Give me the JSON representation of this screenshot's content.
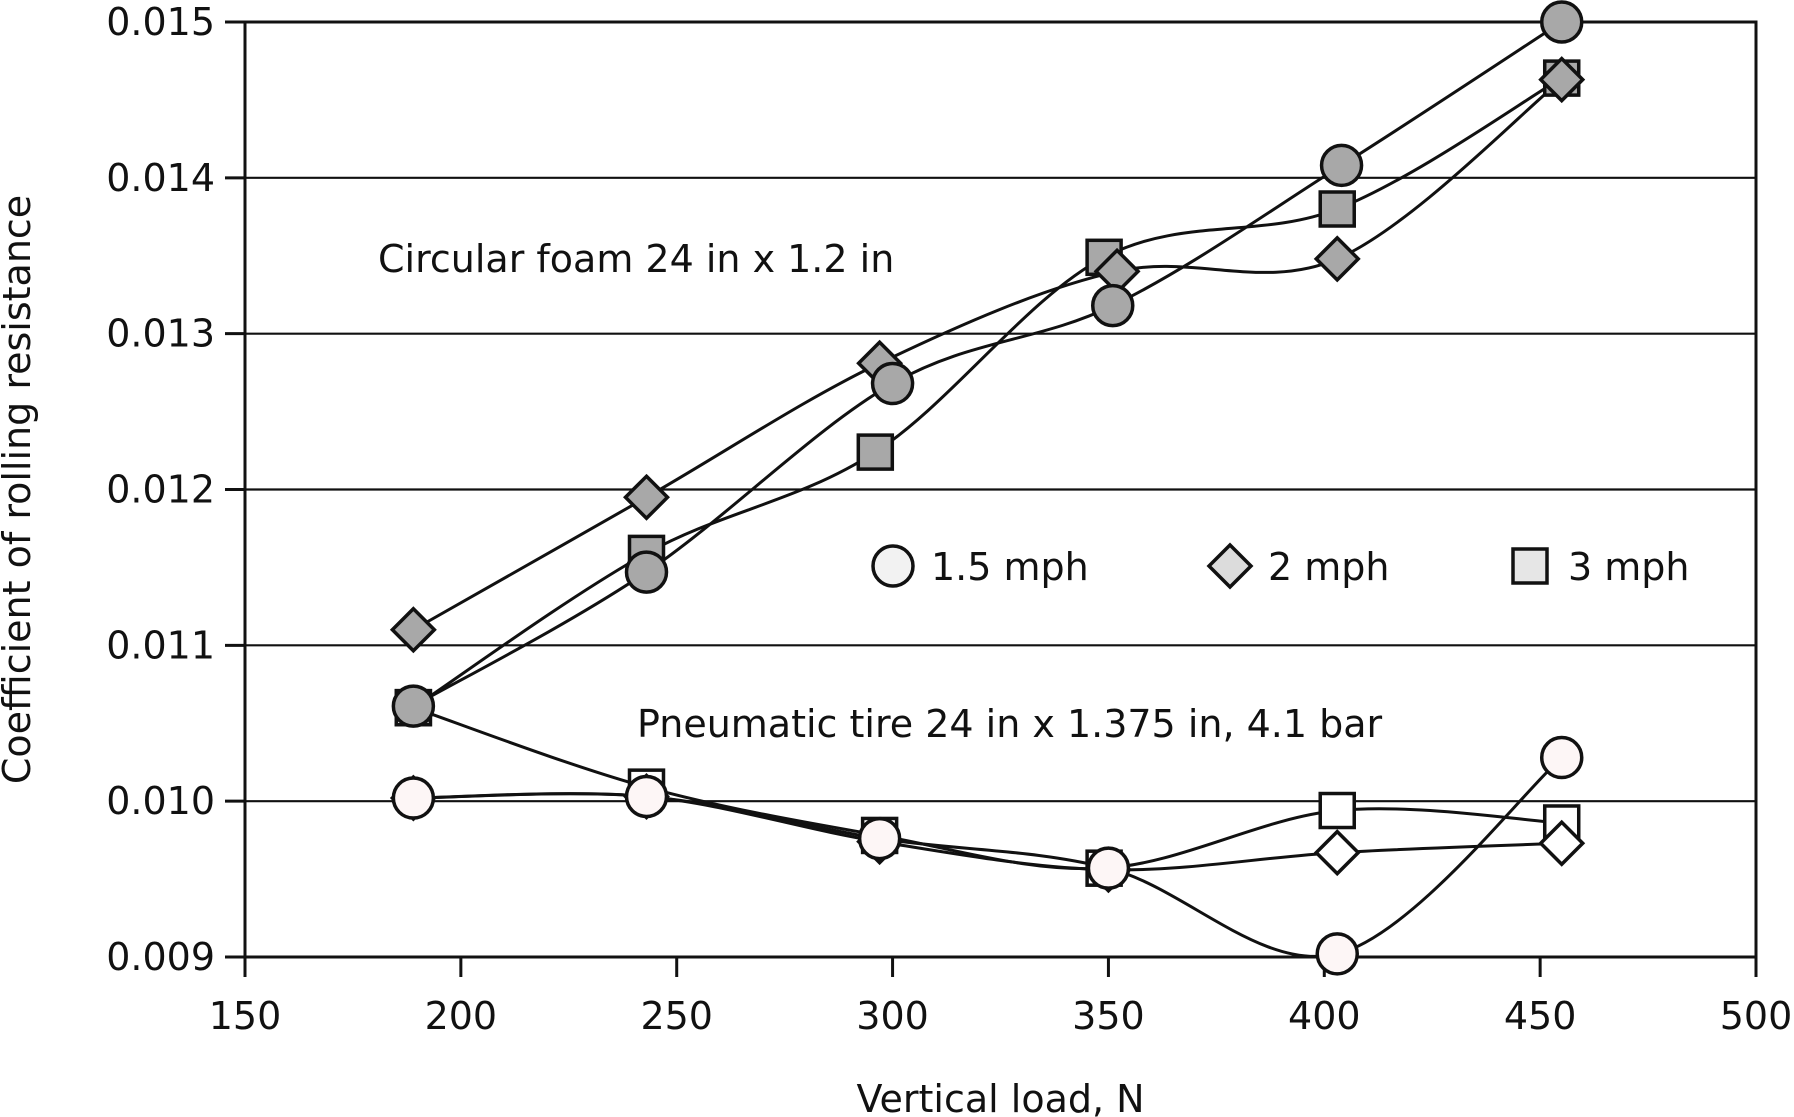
{
  "chart_data": {
    "type": "line",
    "title": "",
    "xlabel": "Vertical load, N",
    "ylabel": "Coefficient of rolling resistance",
    "xlim": [
      150,
      500
    ],
    "ylim": [
      0.009,
      0.015
    ],
    "xticks": [
      150,
      200,
      250,
      300,
      350,
      400,
      450,
      500
    ],
    "yticks": [
      0.009,
      0.01,
      0.011,
      0.012,
      0.013,
      0.014,
      0.015
    ],
    "xtick_labels": [
      "150",
      "200",
      "250",
      "300",
      "350",
      "400",
      "450",
      "500"
    ],
    "ytick_labels": [
      "0.009",
      "0.010",
      "0.011",
      "0.012",
      "0.013",
      "0.014",
      "0.015"
    ],
    "grid": "horizontal",
    "legend_position": "center-right",
    "legend": [
      {
        "label": "1.5 mph",
        "marker": "circle"
      },
      {
        "label": "2 mph",
        "marker": "diamond"
      },
      {
        "label": "3 mph",
        "marker": "square"
      }
    ],
    "annotations": [
      {
        "text": "Circular foam 24 in x 1.2 in"
      },
      {
        "text": "Pneumatic tire 24 in x 1.375 in, 4.1 bar"
      }
    ],
    "colors": {
      "foam_fill": "#a8a8a8",
      "tire_fill": "#ffffff",
      "tire_circle_fill": "#fdf6f6",
      "legend_circle_fill": "#f2f2f2",
      "legend_diamond_fill": "#dcdcdc",
      "legend_square_fill": "#e6e6e6",
      "line": "#111111"
    },
    "series": [
      {
        "group": "Circular foam 24 in x 1.2 in",
        "speed": "1.5 mph",
        "marker": "circle",
        "x": [
          189,
          243,
          300,
          351,
          404,
          455
        ],
        "y": [
          0.01061,
          0.01147,
          0.01268,
          0.01318,
          0.01408,
          0.015
        ]
      },
      {
        "group": "Circular foam 24 in x 1.2 in",
        "speed": "2 mph",
        "marker": "diamond",
        "x": [
          189,
          243,
          297,
          352,
          403,
          455
        ],
        "y": [
          0.0111,
          0.01195,
          0.01281,
          0.0134,
          0.01348,
          0.01463
        ]
      },
      {
        "group": "Circular foam 24 in x 1.2 in",
        "speed": "3 mph",
        "marker": "square",
        "x": [
          189,
          243,
          296,
          349,
          403,
          455
        ],
        "y": [
          0.0106,
          0.01159,
          0.01224,
          0.01349,
          0.0138,
          0.01464
        ]
      },
      {
        "group": "Pneumatic tire 24 in x 1.375 in, 4.1 bar",
        "speed": "1.5 mph",
        "marker": "circle",
        "x": [
          189,
          243,
          297,
          350,
          403,
          455
        ],
        "y": [
          0.01002,
          0.01003,
          0.00976,
          0.00957,
          0.00902,
          0.01028
        ]
      },
      {
        "group": "Pneumatic tire 24 in x 1.375 in, 4.1 bar",
        "speed": "2 mph",
        "marker": "diamond",
        "x": [
          189,
          243,
          297,
          350,
          403,
          455
        ],
        "y": [
          0.01002,
          0.01003,
          0.00974,
          0.00956,
          0.00967,
          0.00973
        ]
      },
      {
        "group": "Pneumatic tire 24 in x 1.375 in, 4.1 bar",
        "speed": "3 mph",
        "marker": "square",
        "x": [
          189,
          243,
          297,
          349,
          403,
          455
        ],
        "y": [
          0.0106,
          0.01009,
          0.00978,
          0.00957,
          0.00994,
          0.00986
        ]
      }
    ]
  }
}
